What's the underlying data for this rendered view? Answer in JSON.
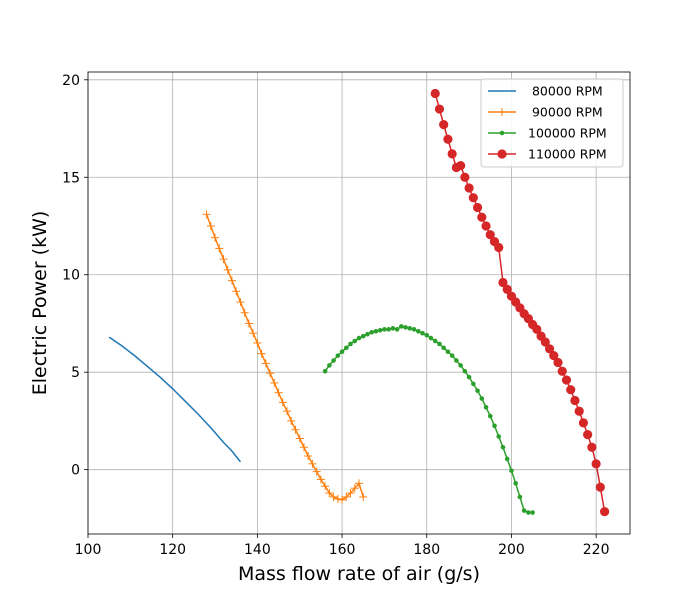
{
  "chart_data": {
    "type": "line",
    "title": "",
    "xlabel": "Mass flow rate of air (g/s)",
    "ylabel": "Electric Power (kW)",
    "xlim": [
      100,
      228
    ],
    "ylim": [
      -3.3,
      20.4
    ],
    "xticks": [
      100,
      120,
      140,
      160,
      180,
      200,
      220
    ],
    "yticks": [
      0,
      5,
      10,
      15,
      20
    ],
    "grid": true,
    "legend_position": "top-right",
    "series": [
      {
        "name": " 80000 RPM",
        "color": "#1f77b4",
        "marker": "none",
        "x": [
          105,
          108,
          111,
          114,
          117,
          120,
          123,
          126,
          129,
          132,
          134,
          136
        ],
        "y": [
          6.8,
          6.35,
          5.85,
          5.3,
          4.75,
          4.15,
          3.5,
          2.85,
          2.15,
          1.4,
          0.95,
          0.4
        ]
      },
      {
        "name": " 90000 RPM",
        "color": "#ff7f0e",
        "marker": "plus",
        "x": [
          128,
          129,
          130,
          131,
          132,
          133,
          134,
          135,
          136,
          137,
          138,
          139,
          140,
          141,
          142,
          143,
          144,
          145,
          146,
          147,
          148,
          149,
          150,
          151,
          152,
          153,
          154,
          155,
          156,
          157,
          158,
          159,
          160,
          161,
          162,
          163,
          164,
          165
        ],
        "y": [
          13.1,
          12.5,
          11.9,
          11.35,
          10.8,
          10.25,
          9.7,
          9.15,
          8.6,
          8.05,
          7.5,
          7.0,
          6.5,
          5.95,
          5.45,
          4.95,
          4.45,
          3.95,
          3.45,
          3.0,
          2.5,
          2.05,
          1.6,
          1.15,
          0.7,
          0.3,
          -0.1,
          -0.5,
          -0.85,
          -1.2,
          -1.4,
          -1.5,
          -1.55,
          -1.4,
          -1.2,
          -0.95,
          -0.7,
          -1.4
        ]
      },
      {
        "name": "100000 RPM",
        "color": "#2ca02c",
        "marker": "point",
        "x": [
          156,
          157,
          158,
          159,
          160,
          161,
          162,
          163,
          164,
          165,
          166,
          167,
          168,
          169,
          170,
          171,
          172,
          173,
          174,
          175,
          176,
          177,
          178,
          179,
          180,
          181,
          182,
          183,
          184,
          185,
          186,
          187,
          188,
          189,
          190,
          191,
          192,
          193,
          194,
          195,
          196,
          197,
          198,
          199,
          200,
          201,
          202,
          203,
          204,
          205
        ],
        "y": [
          5.05,
          5.35,
          5.6,
          5.85,
          6.05,
          6.25,
          6.45,
          6.6,
          6.75,
          6.85,
          6.95,
          7.05,
          7.1,
          7.15,
          7.2,
          7.2,
          7.25,
          7.2,
          7.35,
          7.3,
          7.25,
          7.2,
          7.1,
          7.0,
          6.9,
          6.75,
          6.6,
          6.45,
          6.25,
          6.05,
          5.85,
          5.6,
          5.35,
          5.05,
          4.75,
          4.4,
          4.05,
          3.65,
          3.2,
          2.75,
          2.25,
          1.7,
          1.15,
          0.55,
          -0.05,
          -0.7,
          -1.4,
          -2.1,
          -2.2,
          -2.2
        ]
      },
      {
        "name": "110000 RPM",
        "color": "#d62728",
        "marker": "circle",
        "x": [
          182,
          183,
          184,
          185,
          186,
          187,
          188,
          189,
          190,
          191,
          192,
          193,
          194,
          195,
          196,
          197,
          198,
          199,
          200,
          201,
          202,
          203,
          204,
          205,
          206,
          207,
          208,
          209,
          210,
          211,
          212,
          213,
          214,
          215,
          216,
          217,
          218,
          219,
          220,
          221,
          222
        ],
        "y": [
          19.3,
          18.5,
          17.7,
          16.95,
          16.2,
          15.5,
          15.6,
          15.0,
          14.45,
          13.95,
          13.45,
          12.95,
          12.5,
          12.05,
          11.7,
          11.4,
          9.6,
          9.25,
          8.9,
          8.6,
          8.3,
          8.0,
          7.75,
          7.45,
          7.2,
          6.85,
          6.55,
          6.2,
          5.85,
          5.5,
          5.05,
          4.6,
          4.1,
          3.55,
          3.0,
          2.4,
          1.8,
          1.15,
          0.3,
          -0.9,
          -2.15
        ]
      }
    ]
  }
}
